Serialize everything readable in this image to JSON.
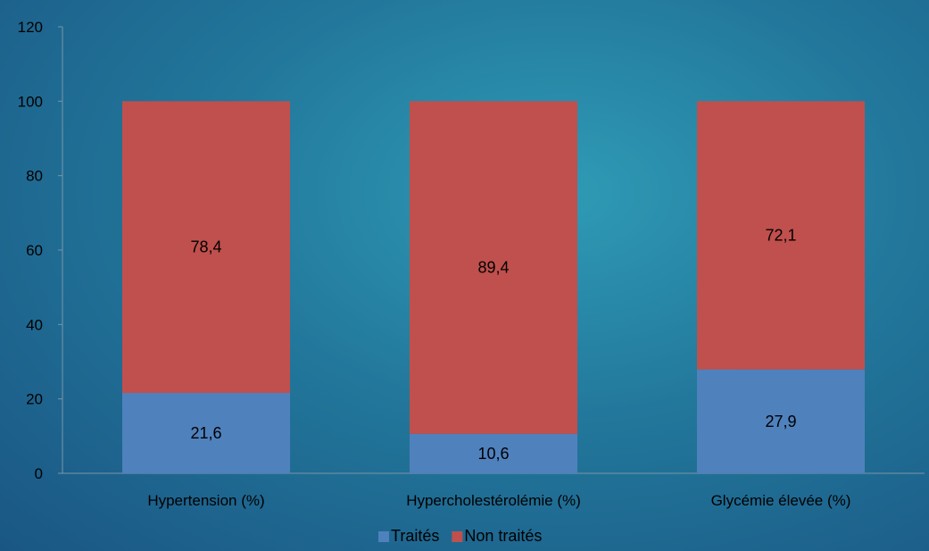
{
  "chart_data": {
    "type": "bar",
    "stacked": true,
    "categories": [
      "Hypertension (%)",
      "Hypercholestérolémie (%)",
      "Glycémie élevée (%)"
    ],
    "series": [
      {
        "name": "Traités",
        "values": [
          21.6,
          10.6,
          27.9
        ],
        "labels": [
          "21,6",
          "10,6",
          "27,9"
        ],
        "color": "#4f81bd"
      },
      {
        "name": "Non traités",
        "values": [
          78.4,
          89.4,
          72.1
        ],
        "labels": [
          "78,4",
          "89,4",
          "72,1"
        ],
        "color": "#c0504d"
      }
    ],
    "ylim": [
      0,
      120
    ],
    "yticks": [
      0,
      20,
      40,
      60,
      80,
      100,
      120
    ],
    "legend_position": "bottom",
    "grid": false
  }
}
